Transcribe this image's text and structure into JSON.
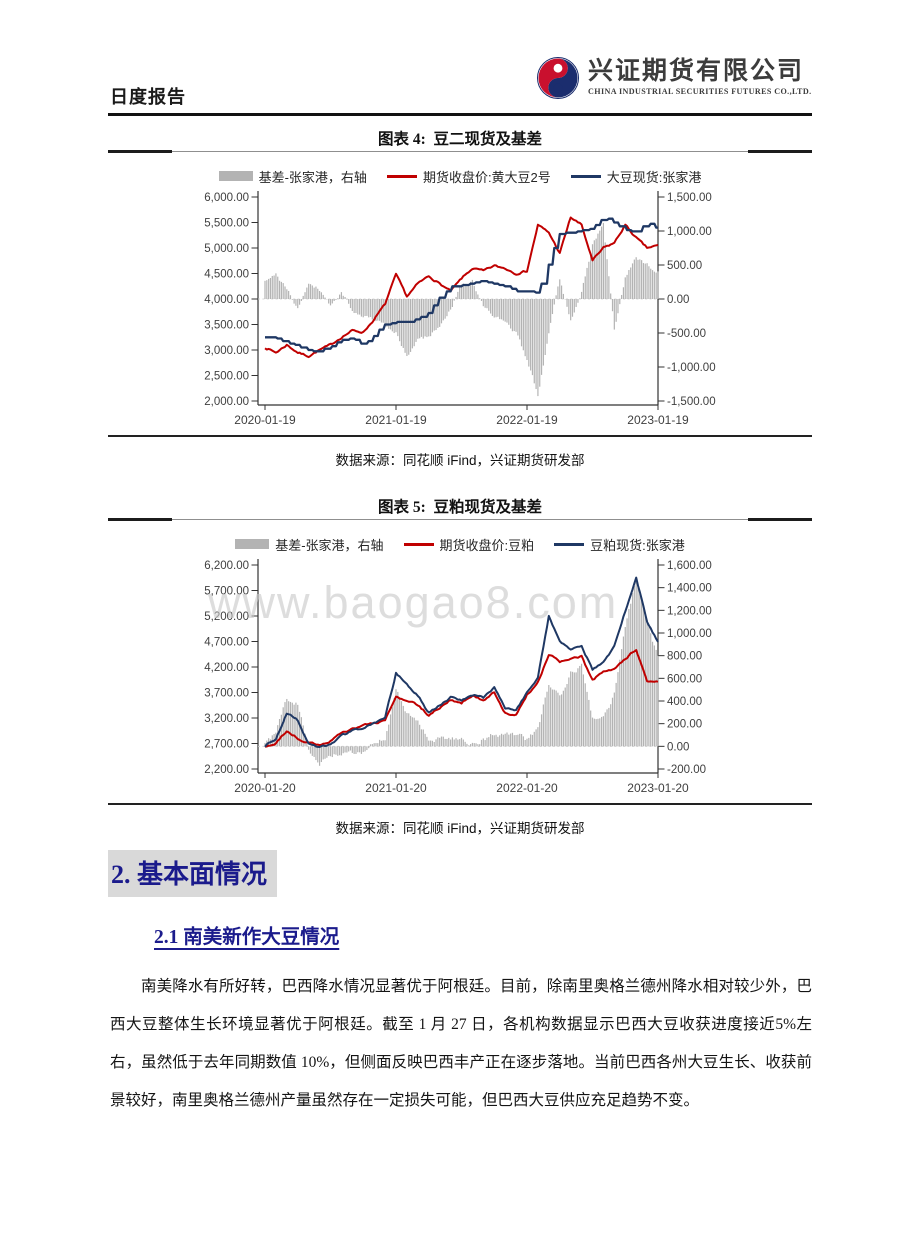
{
  "header": {
    "report_type": "日度报告",
    "company_cn": "兴证期货有限公司",
    "company_en": "CHINA INDUSTRIAL SECURITIES FUTURES CO.,LTD.",
    "logo_blue": "#1b2d6e",
    "logo_red": "#c9102e"
  },
  "watermark": "www.baogao8.com",
  "section": {
    "h1": "2. 基本面情况",
    "h2": "2.1 南美新作大豆情况",
    "paragraph": "南美降水有所好转，巴西降水情况显著优于阿根廷。目前，除南里奥格兰德州降水相对较少外，巴西大豆整体生长环境显著优于阿根廷。截至 1 月 27 日，各机构数据显示巴西大豆收获进度接近5%左右，虽然低于去年同期数值 10%，但侧面反映巴西丰产正在逐步落地。当前巴西各州大豆生长、收获前景较好，南里奥格兰德州产量虽然存在一定损失可能，但巴西大豆供应充足趋势不变。"
  },
  "chart_data": [
    {
      "type": "line",
      "title": "图表 4:  豆二现货及基差",
      "source": "数据来源：同花顺 iFind，兴证期货研发部",
      "x_ticks": [
        "2020-01-19",
        "2021-01-19",
        "2022-01-19",
        "2023-01-19"
      ],
      "months": 37,
      "left_axis": {
        "min": 2000,
        "max": 6000,
        "step": 500
      },
      "right_axis": {
        "min": -1500,
        "max": 1500,
        "step": 500
      },
      "grid": "zero-dotted",
      "legend_position": "top",
      "series": [
        {
          "name": "基差-张家港，右轴",
          "type": "bar",
          "axis": "right",
          "color": "#b3b3b3",
          "values": [
            250,
            350,
            150,
            -150,
            250,
            150,
            -100,
            100,
            -150,
            -250,
            -300,
            -400,
            -500,
            -850,
            -600,
            -550,
            -400,
            -150,
            200,
            250,
            -100,
            -250,
            -350,
            -500,
            -900,
            -1400,
            -500,
            300,
            -300,
            100,
            800,
            1100,
            -450,
            300,
            600,
            500,
            400
          ]
        },
        {
          "name": "期货收盘价:黄大豆2号",
          "type": "line",
          "axis": "left",
          "color": "#c00000",
          "values": [
            3050,
            2950,
            3100,
            2950,
            2880,
            3000,
            3100,
            3250,
            3380,
            3350,
            3600,
            3900,
            4480,
            4050,
            4300,
            4450,
            4300,
            4150,
            4400,
            4600,
            4550,
            4650,
            4600,
            4500,
            4550,
            5450,
            5300,
            4900,
            5600,
            5450,
            4750,
            5000,
            5100,
            5450,
            5200,
            5000,
            5050
          ]
        },
        {
          "name": "大豆现货:张家港",
          "type": "line",
          "style": "step",
          "axis": "left",
          "color": "#1f3864",
          "values": [
            3250,
            3230,
            3130,
            3080,
            2980,
            2980,
            3080,
            3180,
            3230,
            3100,
            3300,
            3500,
            3550,
            3550,
            3600,
            3750,
            4050,
            4250,
            4270,
            4300,
            4350,
            4300,
            4250,
            4150,
            4150,
            4100,
            4780,
            5300,
            5300,
            5350,
            5400,
            5600,
            5500,
            5350,
            5300,
            5500,
            5350
          ]
        }
      ]
    },
    {
      "type": "line",
      "title": "图表 5:  豆粕现货及基差",
      "source": "数据来源：同花顺 iFind，兴证期货研发部",
      "x_ticks": [
        "2020-01-20",
        "2021-01-20",
        "2022-01-20",
        "2023-01-20"
      ],
      "months": 37,
      "left_axis": {
        "min": 2200,
        "max": 6200,
        "step": 500
      },
      "right_axis": {
        "min": -200,
        "max": 1600,
        "step": 200
      },
      "grid": "zero-dotted",
      "legend_position": "top",
      "series": [
        {
          "name": "基差-张家港，右轴",
          "type": "bar",
          "axis": "right",
          "color": "#b3b3b3",
          "values": [
            30,
            120,
            420,
            380,
            -30,
            -170,
            -80,
            -60,
            -60,
            -40,
            30,
            60,
            480,
            300,
            220,
            60,
            60,
            60,
            60,
            20,
            60,
            110,
            90,
            100,
            60,
            150,
            560,
            430,
            650,
            700,
            250,
            250,
            460,
            1070,
            1480,
            1100,
            780
          ]
        },
        {
          "name": "期货收盘价:豆粕",
          "type": "line",
          "axis": "left",
          "color": "#c00000",
          "values": [
            2630,
            2700,
            2950,
            2800,
            2700,
            2680,
            2750,
            2900,
            3000,
            3050,
            3100,
            3150,
            3600,
            3550,
            3450,
            3250,
            3400,
            3550,
            3500,
            3650,
            3550,
            3700,
            3300,
            3250,
            3650,
            3900,
            4450,
            4300,
            4350,
            4400,
            3950,
            4100,
            4150,
            4350,
            4550,
            3900,
            3900
          ]
        },
        {
          "name": "豆粕现货:张家港",
          "type": "line",
          "axis": "left",
          "color": "#1f3864",
          "values": [
            2650,
            2800,
            3300,
            3150,
            2700,
            2620,
            2700,
            2850,
            2950,
            3000,
            3100,
            3200,
            4080,
            3850,
            3650,
            3300,
            3450,
            3600,
            3550,
            3650,
            3600,
            3800,
            3400,
            3350,
            3700,
            4000,
            5200,
            4700,
            4550,
            4600,
            4150,
            4300,
            4600,
            5300,
            5950,
            5100,
            4700
          ]
        }
      ]
    }
  ]
}
